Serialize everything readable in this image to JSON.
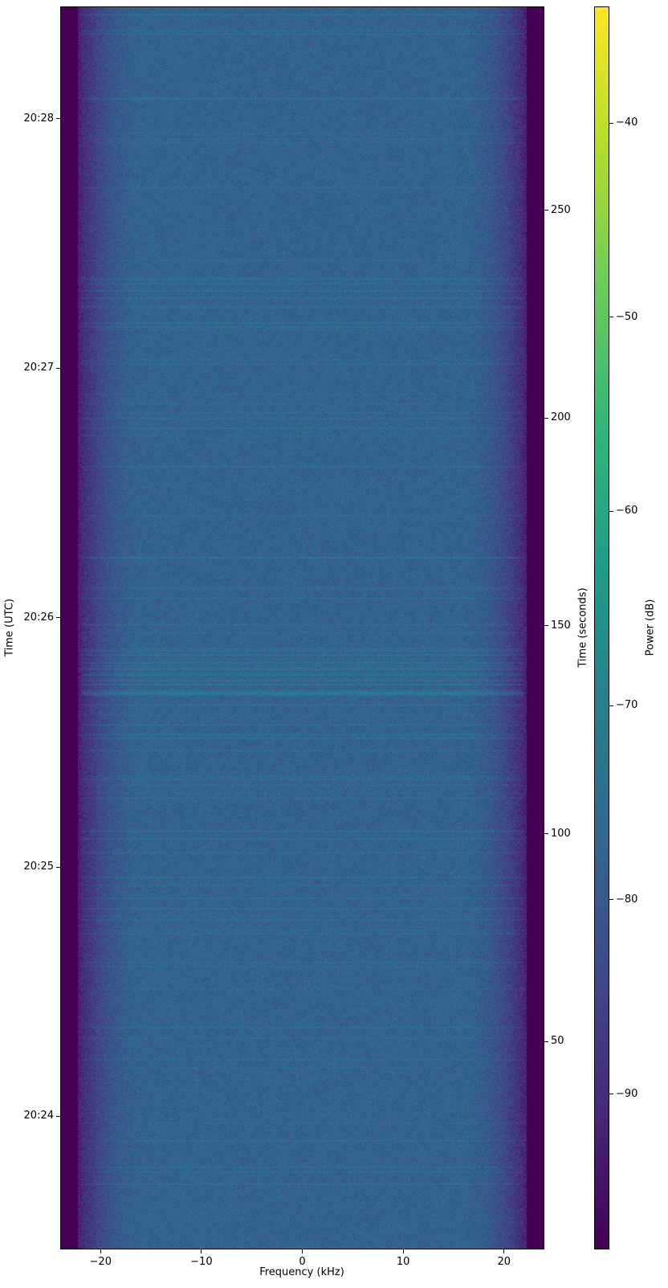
{
  "chart_data": {
    "type": "heatmap",
    "colormap": "viridis",
    "xlabel": "Frequency (kHz)",
    "ylabel_left": "Time (UTC)",
    "ylabel_right": "Time (seconds)",
    "colorbar_label": "Power (dB)",
    "xlim": [
      -24,
      24
    ],
    "ylim_seconds": [
      0,
      299
    ],
    "x_ticks": [
      -20,
      -10,
      0,
      10,
      20
    ],
    "x_tick_labels": [
      "−20",
      "−10",
      "0",
      "10",
      "20"
    ],
    "left_ticks": [
      {
        "seconds": 32,
        "label": "20:24"
      },
      {
        "seconds": 92,
        "label": "20:25"
      },
      {
        "seconds": 152,
        "label": "20:26"
      },
      {
        "seconds": 212,
        "label": "20:27"
      },
      {
        "seconds": 272,
        "label": "20:28"
      }
    ],
    "right_ticks": [
      50,
      100,
      150,
      200,
      250
    ],
    "colorbar_range": [
      -98,
      -34
    ],
    "colorbar_ticks": [
      {
        "value": -40,
        "label": "−40"
      },
      {
        "value": -50,
        "label": "−50"
      },
      {
        "value": -60,
        "label": "−60"
      },
      {
        "value": -70,
        "label": "−70"
      },
      {
        "value": -80,
        "label": "−80"
      },
      {
        "value": -90,
        "label": "−90"
      }
    ],
    "grid": false
  }
}
